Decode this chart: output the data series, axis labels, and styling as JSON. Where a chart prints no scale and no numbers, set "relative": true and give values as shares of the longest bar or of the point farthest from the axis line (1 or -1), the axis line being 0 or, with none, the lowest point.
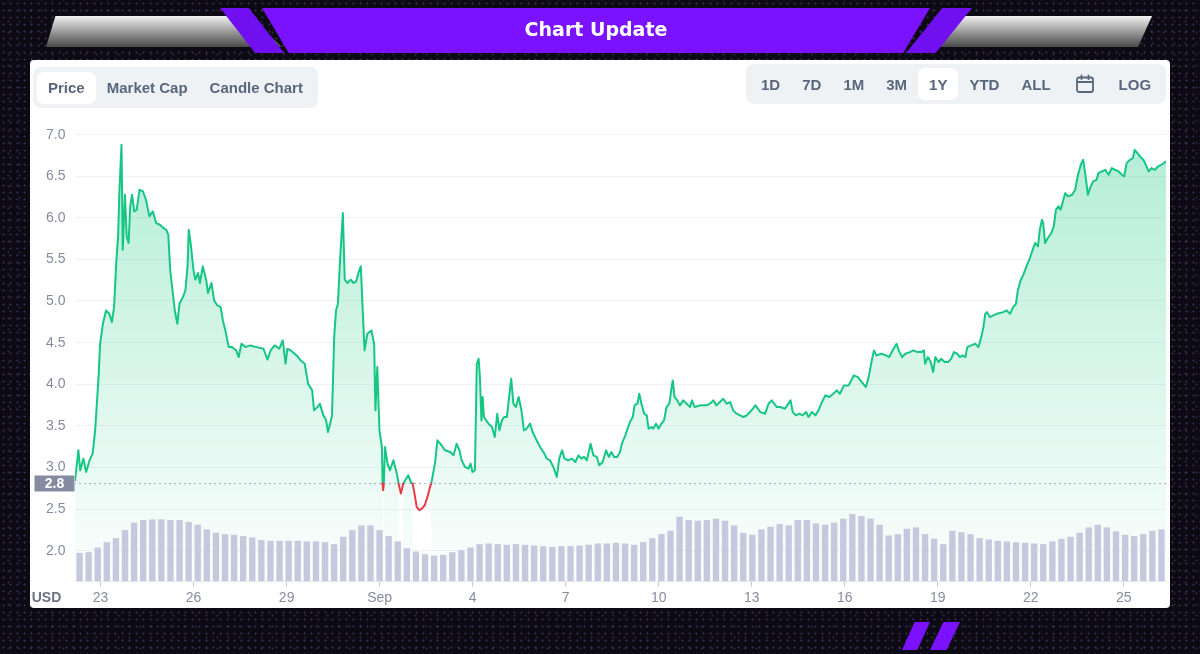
{
  "chart_data": [
    {
      "type": "area",
      "title": "Chart Update",
      "ylabel": "USD",
      "annotations": [
        "Price",
        "Market Cap",
        "Candle Chart",
        "1D",
        "7D",
        "1M",
        "3M",
        "1Y",
        "YTD",
        "ALL",
        "LOG"
      ],
      "series": [
        {
          "color": "#16c784",
          "x": [
            "--08-22T04:34",
            "--08-22T07:12",
            "--08-22T08:38",
            "--08-22T11:02",
            "--08-22T13:12",
            "--08-22T15:50",
            "--08-22T18:14",
            "--08-22T20:10",
            "--08-22T22:48",
            "--08-23T00:00",
            "--08-23T02:10",
            "--08-23T04:34",
            "--08-23T07:12",
            "--08-23T09:07",
            "--08-23T10:48",
            "--08-23T12:29",
            "--08-23T13:55",
            "--08-23T14:53",
            "--08-23T16:34",
            "--08-23T17:31",
            "--08-23T19:12",
            "--08-23T20:38",
            "--08-23T22:05",
            "--08-23T23:17",
            "--08-24T00:43",
            "--08-24T02:24",
            "--08-24T04:19",
            "--08-24T06:29",
            "--08-24T09:07",
            "--08-24T11:31",
            "--08-24T14:10",
            "--08-24T16:48",
            "--08-24T19:26",
            "--08-24T22:19",
            "--08-25T00:58",
            "--08-25T03:07",
            "--08-25T04:48",
            "--08-25T06:14",
            "--08-25T07:41",
            "--08-25T09:50",
            "--08-25T11:46",
            "--08-25T13:26",
            "--08-25T16:05",
            "--08-25T18:00",
            "--08-25T19:41",
            "--08-25T20:38",
            "--08-25T22:05",
            "--08-26T00:14",
            "--08-26T01:41",
            "--08-26T03:50",
            "--08-26T05:17",
            "--08-26T07:26",
            "--08-26T10:05",
            "--08-26T11:31",
            "--08-26T14:10",
            "--08-26T16:19",
            "--08-26T18:43",
            "--08-26T21:22",
            "--08-26T23:02",
            "--08-27T00:58",
            "--08-27T03:36",
            "--08-27T06:14",
            "--08-27T09:22",
            "--08-27T11:17",
            "--08-27T13:26",
            "--08-27T16:34",
            "--08-27T20:10",
            "--08-28T01:12",
            "--08-28T06:29",
            "--08-28T09:36",
            "--08-28T12:00",
            "--08-28T15:07",
            "--08-28T18:43",
            "--08-28T21:22",
            "--08-28T23:31",
            "--08-29T00:58",
            "--08-29T03:36",
            "--08-29T08:10",
            "--08-29T11:17",
            "--08-29T14:24",
            "--08-29T17:02",
            "--08-29T20:10",
            "--08-29T21:36",
            "--08-30T00:14",
            "--08-30T02:10",
            "--08-30T04:48",
            "--08-30T06:58",
            "--08-30T08:24",
            "--08-30T10:05",
            "--08-30T11:31",
            "--08-30T13:12",
            "--08-30T14:38",
            "--08-30T16:05",
            "--08-30T17:46",
            "--08-30T19:55",
            "--08-30T21:22",
            "--08-30T23:31",
            "--08-31T01:55",
            "--08-31T04:05",
            "--08-31T06:14",
            "--08-31T07:55",
            "--08-31T09:50",
            "--08-31T11:17",
            "--08-31T12:43",
            "--08-31T14:53",
            "--08-31T18:00",
            "--08-31T20:10",
            "--08-31T21:07",
            "--08-31T22:34",
            "--09-01T00:14",
            "--09-01T02:10",
            "--09-01T02:38",
            "--09-01T03:07",
            "--09-01T03:36",
            "--09-01T04:34",
            "--09-01T06:29",
            "--09-01T08:24",
            "--09-01T11:02",
            "--09-01T13:41",
            "--09-01T15:07",
            "--09-01T16:48",
            "--09-01T18:43",
            "--09-01T22:34",
            "--09-02T00:29",
            "--09-02T01:55",
            "--09-02T07:12",
            "--09-02T16:19",
            "--09-02T19:12",
            "--09-02T21:07",
            "--09-02T23:17",
            "--09-03T03:07",
            "--09-03T06:58",
            "--09-03T09:36",
            "--09-03T12:00",
            "--09-03T14:10",
            "--09-03T15:50",
            "--09-03T18:29",
            "--09-03T21:07",
            "--09-03T22:48",
            "--09-04T00:14",
            "--09-04T02:10",
            "--09-04T03:36",
            "--09-04T05:02",
            "--09-04T06:00",
            "--09-04T07:12",
            "--09-04T08:10",
            "--09-04T09:07",
            "--09-04T10:48",
            "--09-04T12:43",
            "--09-04T15:22",
            "--09-04T17:31",
            "--09-04T19:26",
            "--09-04T21:07",
            "--09-04T23:02",
            "--09-05T00:43",
            "--09-05T02:53",
            "--09-05T04:19",
            "--09-05T06:14",
            "--09-05T07:55",
            "--09-05T09:50",
            "--09-05T12:00",
            "--09-05T14:10",
            "--09-05T16:05",
            "--09-05T18:14",
            "--09-05T20:53",
            "--09-05T22:48",
            "--09-06T01:55",
            "--09-06T04:34",
            "--09-06T07:12",
            "--09-06T09:50",
            "--09-06T12:14",
            "--09-06T14:53",
            "--09-06T17:31",
            "--09-06T19:26",
            "--09-06T21:36",
            "--09-06T23:31",
            "--09-07T02:24",
            "--09-07T05:17",
            "--09-07T07:55",
            "--09-07T10:19",
            "--09-07T12:29",
            "--09-07T14:38",
            "--09-07T16:48",
            "--09-07T19:41",
            "--09-07T21:50",
            "--09-08T00:29",
            "--09-08T02:24",
            "--09-08T05:02",
            "--09-08T07:41",
            "--09-08T09:50",
            "--09-08T11:46",
            "--09-08T13:55",
            "--09-08T16:19",
            "--09-08T18:29",
            "--09-08T19:55",
            "--09-08T22:34",
            "--09-09T00:43",
            "--09-09T02:10",
            "--09-09T04:19",
            "--09-09T05:46",
            "--09-09T07:55",
            "--09-09T09:22",
            "--09-09T11:02",
            "--09-09T13:12",
            "--09-09T15:07",
            "--09-09T16:34",
            "--09-09T18:43",
            "--09-09T20:10",
            "--09-09T22:19",
            "--09-10T00:14",
            "--09-10T02:24",
            "--09-10T04:34",
            "--09-10T06:29",
            "--09-10T08:38",
            "--09-10T10:05",
            "--09-10T11:17",
            "--09-10T12:43",
            "--09-10T14:53",
            "--09-10T16:48",
            "--09-10T19:26",
            "--09-10T22:05",
            "--09-11T00:43",
            "--09-11T02:10",
            "--09-11T04:19",
            "--09-11T08:24",
            "--09-11T13:26",
            "--09-11T16:05",
            "--09-11T18:43",
            "--09-11T21:07",
            "--09-11T23:46",
            "--09-12T02:24",
            "--09-12T05:02",
            "--09-12T07:41",
            "--09-12T10:05",
            "--09-12T12:43",
            "--09-12T15:22",
            "--09-12T18:00",
            "--09-12T20:38",
            "--09-12T23:02",
            "--09-13T03:22",
            "--09-13T06:58",
            "--09-13T10:48",
            "--09-13T13:26",
            "--09-13T15:50",
            "--09-13T19:55",
            "--09-13T22:19",
            "--09-14T02:10",
            "--09-14T06:29",
            "--09-14T08:10",
            "--09-14T10:34",
            "--09-14T13:12",
            "--09-14T15:50",
            "--09-14T18:29",
            "--09-14T20:24",
            "--09-14T23:02",
            "--09-15T01:41",
            "--09-15T04:05",
            "--09-15T06:14",
            "--09-15T09:22",
            "--09-15T12:29",
            "--09-15T15:36",
            "--09-15T18:14",
            "--09-15T20:38",
            "--09-15T23:46",
            "--09-16T03:22",
            "--09-16T05:31",
            "--09-16T07:26",
            "--09-16T10:34",
            "--09-16T13:41",
            "--09-16T16:48",
            "--09-16T18:58",
            "--09-16T21:22",
            "--09-16T23:02",
            "--09-17T00:58",
            "--09-17T04:48",
            "--09-17T08:24",
            "--09-17T10:48",
            "--09-17T13:26",
            "--09-17T16:34",
            "--09-17T18:14",
            "--09-17T20:53",
            "--09-17T23:17",
            "--09-18T02:53",
            "--09-18T05:31",
            "--09-18T08:38",
            "--09-18T11:46",
            "--09-18T13:41",
            "--09-18T14:38",
            "--09-18T16:48",
            "--09-18T18:58",
            "--09-18T20:53",
            "--09-18T22:34",
            "--09-19T00:58",
            "--09-19T03:07",
            "--09-19T05:46",
            "--09-19T08:24",
            "--09-19T10:48",
            "--09-19T12:58",
            "--09-19T15:36",
            "--09-19T17:31",
            "--09-19T19:41",
            "--09-19T21:50",
            "--09-19T23:17",
            "--09-20T02:24",
            "--09-20T05:31",
            "--09-20T07:55",
            "--09-20T10:05",
            "--09-20T11:46",
            "--09-20T13:12",
            "--09-20T14:38",
            "--09-20T16:48",
            "--09-20T19:26",
            "--09-20T22:05",
            "--09-21T03:07",
            "--09-21T05:46",
            "--09-21T08:24",
            "--09-21T10:48",
            "--09-21T12:58",
            "--09-21T14:24",
            "--09-21T16:34",
            "--09-21T18:43",
            "--09-21T21:07",
            "--09-21T23:46",
            "--09-22T01:55",
            "--09-22T03:50",
            "--09-22T06:00",
            "--09-22T07:26",
            "--09-22T09:07",
            "--09-22T10:05",
            "--09-22T11:31",
            "--09-22T13:41",
            "--09-22T16:19",
            "--09-22T18:14",
            "--09-22T19:55",
            "--09-22T21:50",
            "--09-22T23:31",
            "--09-23T01:41",
            "--09-23T03:07",
            "--09-23T05:17",
            "--09-23T08:24",
            "--09-23T10:48",
            "--09-23T12:58",
            "--09-23T15:36",
            "--09-23T17:02",
            "--09-23T18:43",
            "--09-23T20:38",
            "--09-23T22:19",
            "--09-24T00:43",
            "--09-24T03:22",
            "--09-24T04:48",
            "--09-24T07:26",
            "--09-24T10:05",
            "--09-24T12:43",
            "--09-24T15:07",
            "--09-24T17:46",
            "--09-24T20:24",
            "--09-24T23:02",
            "--09-25T00:43",
            "--09-25T02:38",
            "--09-25T05:17",
            "--09-25T07:26",
            "--09-25T08:53",
            "--09-25T11:02",
            "--09-25T12:58",
            "--09-25T15:36",
            "--09-25T17:31",
            "--09-25T19:41",
            "--09-25T21:50",
            "--09-26T00:29",
            "--09-26T02:53",
            "--09-26T05:31",
            "--09-26T09:07"
          ],
          "values": [
            2.84,
            3.2,
            2.96,
            3.1,
            2.94,
            3.08,
            3.16,
            3.44,
            4.08,
            4.48,
            4.72,
            4.88,
            4.84,
            4.74,
            4.92,
            5.45,
            5.77,
            6.29,
            6.87,
            5.61,
            6.27,
            5.77,
            5.69,
            6.13,
            6.27,
            6.07,
            6.09,
            6.33,
            6.31,
            6.21,
            6.01,
            6.07,
            5.93,
            5.91,
            5.87,
            5.85,
            5.79,
            5.37,
            5.17,
            4.88,
            4.72,
            4.96,
            5.04,
            5.12,
            5.41,
            5.85,
            5.69,
            5.37,
            5.25,
            5.33,
            5.21,
            5.41,
            5.25,
            5.09,
            5.21,
            5.0,
            4.94,
            4.92,
            4.76,
            4.64,
            4.44,
            4.44,
            4.4,
            4.32,
            4.48,
            4.44,
            4.46,
            4.44,
            4.42,
            4.29,
            4.4,
            4.46,
            4.42,
            4.52,
            4.24,
            4.42,
            4.4,
            4.34,
            4.28,
            4.24,
            4.0,
            3.92,
            3.68,
            3.72,
            3.76,
            3.62,
            3.56,
            3.42,
            3.52,
            3.62,
            4.56,
            4.88,
            4.96,
            5.49,
            6.05,
            5.25,
            5.21,
            5.25,
            5.21,
            5.23,
            5.33,
            5.41,
            4.88,
            4.4,
            4.6,
            4.64,
            4.48,
            3.68,
            4.2,
            3.44,
            3.24,
            2.8,
            null,
            2.8,
            3.24,
            3.04,
            2.96,
            3.08,
            2.92,
            2.8,
            null,
            2.8,
            2.9,
            2.82,
            2.8,
            null,
            2.8,
            3.04,
            3.32,
            3.28,
            3.2,
            3.18,
            3.14,
            3.28,
            3.2,
            3.08,
            3.0,
            2.98,
            3.04,
            2.94,
            2.96,
            4.24,
            4.3,
            4.08,
            3.56,
            3.84,
            3.6,
            3.56,
            3.52,
            3.48,
            3.36,
            3.64,
            3.44,
            3.56,
            3.6,
            3.6,
            3.8,
            4.06,
            3.76,
            3.72,
            3.84,
            3.68,
            3.44,
            3.46,
            3.52,
            3.42,
            3.32,
            3.24,
            3.18,
            3.1,
            3.08,
            3.0,
            2.88,
            3.1,
            3.2,
            3.1,
            3.08,
            3.1,
            3.06,
            3.14,
            3.1,
            3.12,
            3.08,
            3.28,
            3.14,
            3.12,
            3.02,
            3.06,
            3.2,
            3.12,
            3.18,
            3.12,
            3.12,
            3.18,
            3.28,
            3.38,
            3.48,
            3.54,
            3.6,
            3.74,
            3.76,
            3.88,
            3.76,
            3.64,
            3.62,
            3.46,
            3.48,
            3.46,
            3.52,
            3.46,
            3.52,
            3.56,
            3.72,
            3.76,
            3.92,
            4.04,
            3.84,
            3.8,
            3.74,
            3.8,
            3.76,
            3.72,
            3.8,
            3.72,
            3.74,
            3.74,
            3.76,
            3.8,
            3.74,
            3.78,
            3.82,
            3.76,
            3.78,
            3.68,
            3.64,
            3.62,
            3.6,
            3.62,
            3.66,
            3.74,
            3.66,
            3.64,
            3.76,
            3.8,
            3.72,
            3.72,
            3.7,
            3.8,
            3.66,
            3.62,
            3.64,
            3.62,
            3.66,
            3.6,
            3.66,
            3.62,
            3.68,
            3.76,
            3.86,
            3.84,
            3.88,
            3.92,
            3.88,
            3.98,
            3.98,
            4.04,
            4.1,
            4.08,
            4.02,
            3.96,
            4.08,
            4.28,
            4.4,
            4.34,
            4.36,
            4.34,
            4.32,
            4.4,
            4.48,
            4.4,
            4.32,
            4.36,
            4.38,
            4.4,
            4.38,
            4.38,
            4.4,
            4.24,
            4.32,
            4.26,
            4.14,
            4.32,
            4.26,
            4.3,
            4.26,
            4.26,
            4.3,
            4.38,
            4.36,
            4.32,
            4.34,
            4.32,
            4.44,
            4.46,
            4.48,
            4.44,
            4.56,
            4.68,
            4.84,
            4.86,
            4.8,
            4.82,
            4.84,
            4.86,
            4.88,
            4.84,
            4.92,
            4.96,
            5.12,
            5.24,
            5.31,
            5.41,
            5.51,
            5.61,
            5.69,
            5.65,
            5.85,
            5.97,
            5.93,
            5.69,
            5.75,
            5.81,
            5.89,
            6.09,
            6.13,
            6.09,
            6.21,
            6.29,
            6.25,
            6.27,
            6.33,
            6.51,
            6.65,
            6.69,
            6.51,
            6.27,
            6.35,
            6.43,
            6.45,
            6.53,
            6.55,
            6.57,
            6.51,
            6.59,
            6.57,
            6.55,
            6.51,
            6.49,
            6.65,
            6.69,
            6.71,
            6.81,
            6.77,
            6.73,
            6.69,
            6.63,
            6.55,
            6.59,
            6.57,
            6.61,
            6.63,
            6.67
          ]
        },
        {
          "type": "line",
          "color": "#ea3943",
          "x": [
            "--09-01T02:38",
            "--09-01T03:07",
            "--09-01T03:36",
            "--09-01T09:36",
            "--09-01T15:07",
            "--09-01T16:48",
            "--09-01T18:43",
            "--09-01T21:36",
            "--09-02T01:55",
            "--09-02T03:50",
            "--09-02T05:02",
            "--09-02T07:12",
            "--09-02T09:07",
            "--09-02T11:17",
            "--09-02T13:26",
            "--09-02T15:22",
            "--09-02T16:19"
          ],
          "values": [
            2.8,
            2.72,
            2.8,
            null,
            2.8,
            2.68,
            2.8,
            null,
            2.8,
            2.64,
            2.52,
            2.48,
            2.5,
            2.54,
            2.64,
            2.76,
            2.8
          ]
        }
      ],
      "xlim": [
        "--08-22T04:34",
        "--09-26T09:07"
      ],
      "xticks": [
        {
          "value": "--08-23",
          "label": "23"
        },
        {
          "value": "--08-26",
          "label": "26"
        },
        {
          "value": "--08-29",
          "label": "29"
        },
        {
          "value": "--09-01",
          "label": "Sep"
        },
        {
          "value": "--09-04",
          "label": "4"
        },
        {
          "value": "--09-07",
          "label": "7"
        },
        {
          "value": "--09-10",
          "label": "10"
        },
        {
          "value": "--09-13",
          "label": "13"
        },
        {
          "value": "--09-16",
          "label": "16"
        },
        {
          "value": "--09-19",
          "label": "19"
        },
        {
          "value": "--09-22",
          "label": "22"
        },
        {
          "value": "--09-25",
          "label": "25"
        }
      ],
      "ylim": [
        1.63,
        7
      ],
      "yticks": [
        {
          "value": 2,
          "label": "2.0"
        },
        2.5,
        {
          "value": 3,
          "label": "3.0"
        },
        3.5,
        {
          "value": 4,
          "label": "4.0"
        },
        4.5,
        {
          "value": 5,
          "label": "5.0"
        },
        5.5,
        {
          "value": 6,
          "label": "6.0"
        },
        6.5,
        {
          "value": 7,
          "label": "7.0"
        }
      ],
      "grid": "y",
      "ref_lines": [
        {
          "axis": "y",
          "value": 2.8,
          "label": "2.8",
          "color": "#a6abb8",
          "line_style": "dotted"
        }
      ]
    },
    {
      "type": "bar",
      "relative": true,
      "color": "#c5c9dd",
      "categories": [
        null,
        null,
        null,
        null,
        null,
        null,
        null,
        null,
        null,
        null,
        null,
        null,
        null,
        null,
        null,
        null,
        null,
        null,
        null,
        null,
        null,
        null,
        null,
        null,
        null,
        null,
        null,
        null,
        null,
        null,
        null,
        null,
        null,
        null,
        null,
        null,
        null,
        null,
        null,
        null,
        null,
        null,
        null,
        null,
        null,
        null,
        null,
        null,
        null,
        null,
        null,
        null,
        null,
        null,
        null,
        null,
        null,
        null,
        null,
        null,
        null,
        null,
        null,
        null,
        null,
        null,
        null,
        null,
        null,
        null,
        null,
        null,
        null,
        null,
        null,
        null,
        null,
        null,
        null,
        null,
        null,
        null,
        null,
        null,
        null,
        null,
        null,
        null,
        null,
        null,
        null,
        null,
        null,
        null,
        null,
        null,
        null,
        null,
        null,
        null,
        null,
        null,
        null,
        null,
        null,
        null,
        null,
        null,
        null,
        null,
        null,
        null,
        null,
        null,
        null,
        null,
        null,
        null,
        null,
        null
      ],
      "values": [
        0.42,
        0.43,
        0.5,
        0.58,
        0.64,
        0.76,
        0.87,
        0.91,
        0.92,
        0.92,
        0.91,
        0.91,
        0.88,
        0.84,
        0.77,
        0.72,
        0.7,
        0.69,
        0.67,
        0.65,
        0.61,
        0.6,
        0.6,
        0.6,
        0.6,
        0.59,
        0.59,
        0.58,
        0.55,
        0.66,
        0.76,
        0.83,
        0.83,
        0.76,
        0.67,
        0.59,
        0.49,
        0.44,
        0.4,
        0.38,
        0.39,
        0.43,
        0.46,
        0.5,
        0.55,
        0.56,
        0.55,
        0.54,
        0.55,
        0.54,
        0.53,
        0.52,
        0.51,
        0.52,
        0.52,
        0.53,
        0.54,
        0.56,
        0.56,
        0.57,
        0.56,
        0.54,
        0.58,
        0.64,
        0.7,
        0.75,
        0.96,
        0.91,
        0.9,
        0.91,
        0.93,
        0.9,
        0.83,
        0.72,
        0.69,
        0.77,
        0.81,
        0.85,
        0.83,
        0.91,
        0.91,
        0.86,
        0.84,
        0.87,
        0.93,
        1.0,
        0.97,
        0.93,
        0.84,
        0.68,
        0.7,
        0.78,
        0.8,
        0.7,
        0.63,
        0.55,
        0.75,
        0.73,
        0.7,
        0.64,
        0.62,
        0.6,
        0.59,
        0.58,
        0.57,
        0.56,
        0.55,
        0.59,
        0.63,
        0.66,
        0.72,
        0.8,
        0.84,
        0.8,
        0.74,
        0.69,
        0.67,
        0.7,
        0.75,
        0.77
      ]
    }
  ]
}
